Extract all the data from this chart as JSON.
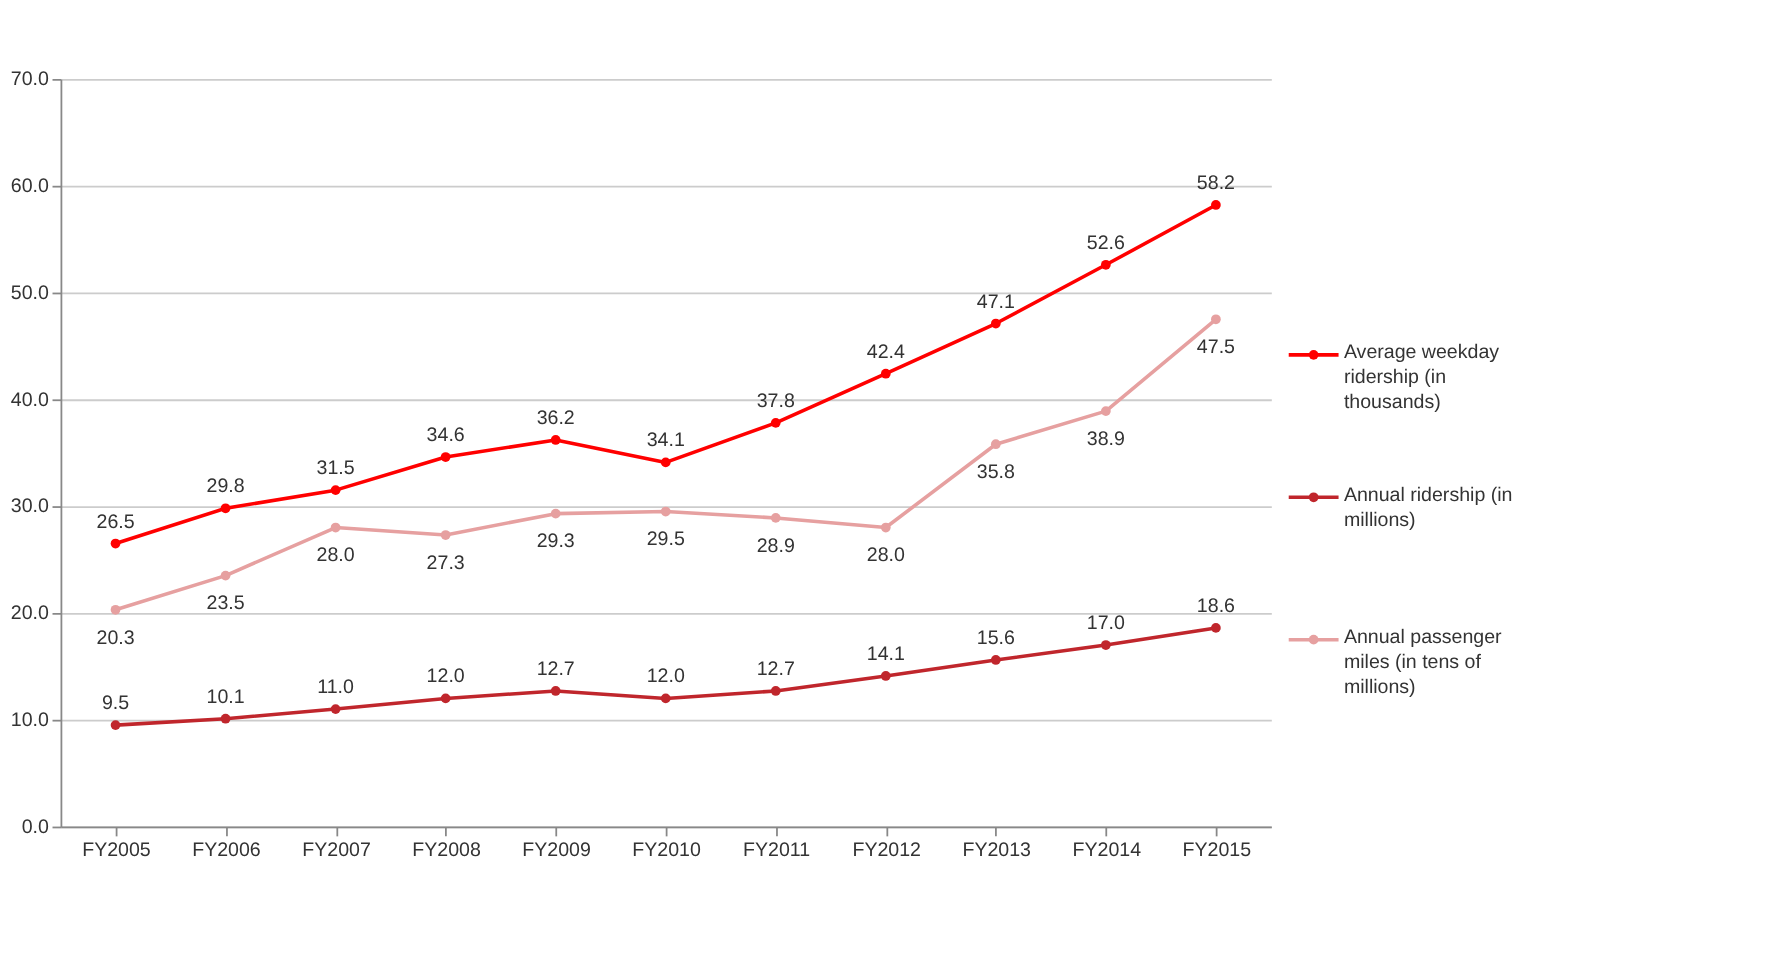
{
  "chart_data": {
    "type": "line",
    "categories": [
      "FY2005",
      "FY2006",
      "FY2007",
      "FY2008",
      "FY2009",
      "FY2010",
      "FY2011",
      "FY2012",
      "FY2013",
      "FY2014",
      "FY2015"
    ],
    "series": [
      {
        "name": "Average weekday ridership (in thousands)",
        "color": "#ff0000",
        "values": [
          26.5,
          29.8,
          31.5,
          34.6,
          36.2,
          34.1,
          37.8,
          42.4,
          47.1,
          52.6,
          58.2
        ],
        "value_labels": [
          "26.5",
          "29.8",
          "31.5",
          "34.6",
          "36.2",
          "34.1",
          "37.8",
          "42.4",
          "47.1",
          "52.6",
          "58.2"
        ]
      },
      {
        "name": "Annual ridership (in millions)",
        "color": "#c0262c",
        "values": [
          9.5,
          10.1,
          11.0,
          12.0,
          12.7,
          12.0,
          12.7,
          14.1,
          15.6,
          17.0,
          18.6
        ],
        "value_labels": [
          "9.5",
          "10.1",
          "11.0",
          "12.0",
          "12.7",
          "12.0",
          "12.7",
          "14.1",
          "15.6",
          "17.0",
          "18.6"
        ]
      },
      {
        "name": "Annual passenger miles (in tens of millions)",
        "color": "#e6a0a0",
        "values": [
          20.3,
          23.5,
          28.0,
          27.3,
          29.3,
          29.5,
          28.9,
          28.0,
          35.8,
          38.9,
          47.5
        ],
        "value_labels": [
          "20.3",
          "23.5",
          "28.0",
          "27.3",
          "29.3",
          "29.5",
          "28.9",
          "28.0",
          "35.8",
          "38.9",
          "47.5"
        ]
      }
    ],
    "ylim": [
      0,
      70
    ],
    "yticks": [
      {
        "value": 0,
        "label": "0.0"
      },
      {
        "value": 10,
        "label": "10.0"
      },
      {
        "value": 20,
        "label": "20.0"
      },
      {
        "value": 30,
        "label": "30.0"
      },
      {
        "value": 40,
        "label": "40.0"
      },
      {
        "value": 50,
        "label": "50.0"
      },
      {
        "value": 60,
        "label": "60.0"
      },
      {
        "value": 70,
        "label": "70.0"
      }
    ],
    "grid": "y",
    "legend": "right",
    "marker": "circle",
    "line_style": "solid"
  }
}
